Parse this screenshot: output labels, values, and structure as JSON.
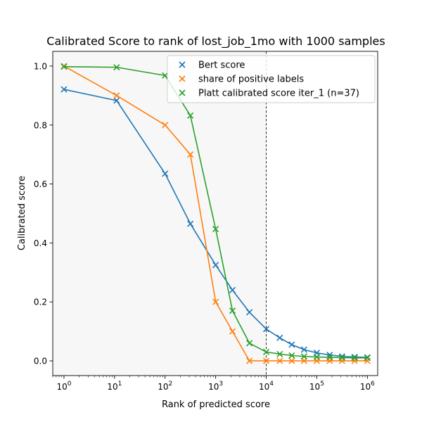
{
  "chart_data": {
    "type": "line",
    "title": "Calibrated Score to rank of lost_job_1mo with 1000 samples",
    "xlabel": "Rank of predicted score",
    "ylabel": "Calibrated score",
    "x_scale": "log",
    "xlim": [
      0.6,
      1600000
    ],
    "ylim": [
      -0.05,
      1.05
    ],
    "x_ticks": [
      {
        "value": 1,
        "base": "10",
        "exp": "0"
      },
      {
        "value": 10,
        "base": "10",
        "exp": "1"
      },
      {
        "value": 100,
        "base": "10",
        "exp": "2"
      },
      {
        "value": 1000,
        "base": "10",
        "exp": "3"
      },
      {
        "value": 10000,
        "base": "10",
        "exp": "4"
      },
      {
        "value": 100000,
        "base": "10",
        "exp": "5"
      },
      {
        "value": 1000000,
        "base": "10",
        "exp": "6"
      }
    ],
    "y_ticks": [
      {
        "value": 0.0,
        "label": "0.0"
      },
      {
        "value": 0.2,
        "label": "0.2"
      },
      {
        "value": 0.4,
        "label": "0.4"
      },
      {
        "value": 0.6,
        "label": "0.6"
      },
      {
        "value": 0.8,
        "label": "0.8"
      },
      {
        "value": 1.0,
        "label": "1.0"
      }
    ],
    "shaded_region": {
      "x_start": 0.6,
      "x_end": 10000,
      "color": "#f7f7f7"
    },
    "vline": {
      "x": 10000
    },
    "grid": false,
    "legend_position": "top-right",
    "series": [
      {
        "name": "Bert score",
        "color": "#1f77b4",
        "x": [
          1,
          11,
          100,
          316,
          1000,
          2150,
          4650,
          10000,
          18500,
          32000,
          56000,
          100000,
          180000,
          316000,
          560000,
          1000000
        ],
        "y": [
          0.921,
          0.883,
          0.635,
          0.465,
          0.325,
          0.24,
          0.165,
          0.108,
          0.078,
          0.055,
          0.038,
          0.027,
          0.02,
          0.015,
          0.013,
          0.012
        ]
      },
      {
        "name": "share of positive labels",
        "color": "#ff7f0e",
        "x": [
          1,
          11,
          100,
          316,
          1000,
          2150,
          4650,
          10000,
          18500,
          32000,
          56000,
          100000,
          180000,
          316000,
          560000,
          1000000
        ],
        "y": [
          1.0,
          0.9,
          0.8,
          0.7,
          0.2,
          0.1,
          0.0,
          0.0,
          0.0,
          0.0,
          0.0,
          0.0,
          0.0,
          0.0,
          0.0,
          0.0
        ]
      },
      {
        "name": "Platt calibrated score iter_1 (n=37)",
        "color": "#2ca02c",
        "x": [
          1,
          11,
          100,
          316,
          1000,
          2150,
          4650,
          10000,
          18500,
          32000,
          56000,
          100000,
          180000,
          316000,
          560000,
          1000000
        ],
        "y": [
          0.998,
          0.996,
          0.968,
          0.832,
          0.447,
          0.17,
          0.06,
          0.03,
          0.023,
          0.018,
          0.015,
          0.013,
          0.012,
          0.011,
          0.01,
          0.01
        ]
      }
    ]
  }
}
